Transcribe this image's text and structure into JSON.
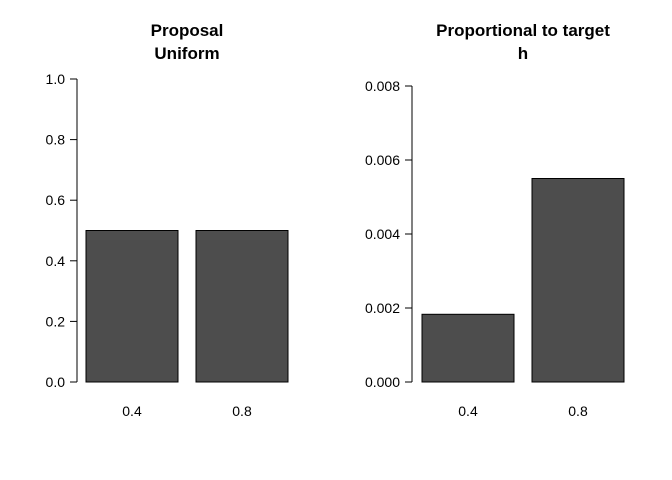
{
  "chart_data": [
    {
      "type": "bar",
      "title": [
        "Proposal",
        "Uniform"
      ],
      "categories": [
        "0.4",
        "0.8"
      ],
      "values": [
        0.5,
        0.5
      ],
      "ylim": [
        0,
        1.0
      ],
      "yticks": [
        "0.0",
        "0.2",
        "0.4",
        "0.6",
        "0.8",
        "1.0"
      ],
      "bar_color": "#4d4d4d",
      "grid": false
    },
    {
      "type": "bar",
      "title": [
        "Proportional to target",
        "h"
      ],
      "categories": [
        "0.4",
        "0.8"
      ],
      "values": [
        0.00183,
        0.0055
      ],
      "ylim": [
        0,
        0.008
      ],
      "yticks": [
        "0.000",
        "0.002",
        "0.004",
        "0.006",
        "0.008"
      ],
      "bar_color": "#4d4d4d",
      "grid": false
    }
  ]
}
